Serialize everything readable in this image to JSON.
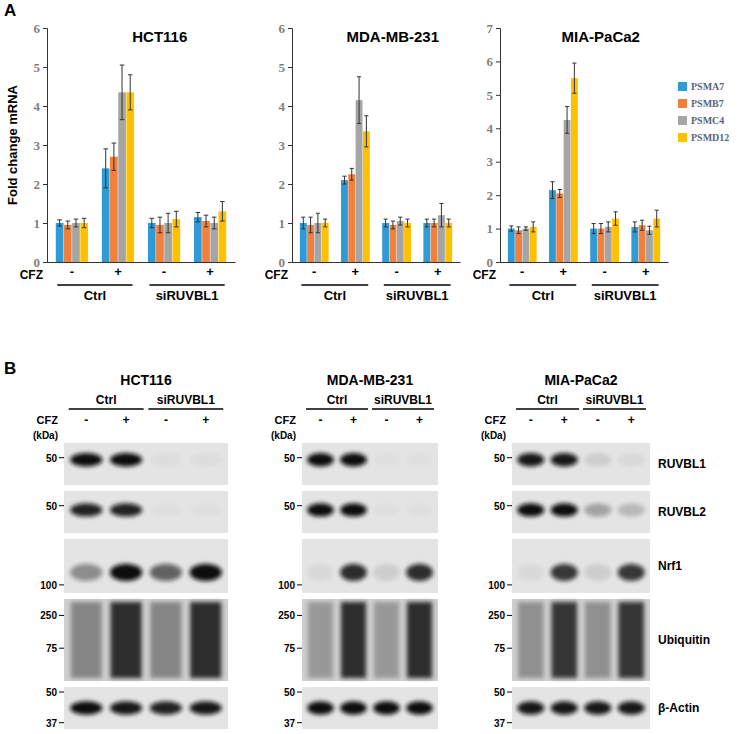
{
  "panel_labels": [
    "A",
    "B"
  ],
  "chart_data": [
    {
      "type": "bar",
      "title": "HCT116",
      "y_label": "Fold change mRNA",
      "x_label": "CFZ",
      "categories": [
        "-",
        "+",
        "-",
        "+"
      ],
      "group_labels": [
        "Ctrl",
        "siRUVBL1"
      ],
      "ylim": [
        0,
        6
      ],
      "yticks": [
        0,
        1,
        2,
        3,
        4,
        5,
        6
      ],
      "grid": false,
      "series": [
        {
          "name": "PSMA7",
          "color": "#2E9BD6",
          "values": [
            1.0,
            2.4,
            1.0,
            1.15
          ],
          "errors": [
            0.08,
            0.5,
            0.12,
            0.12
          ]
        },
        {
          "name": "PSMB7",
          "color": "#F0803C",
          "values": [
            0.95,
            2.7,
            0.95,
            1.05
          ],
          "errors": [
            0.1,
            0.35,
            0.2,
            0.15
          ]
        },
        {
          "name": "PSMC4",
          "color": "#A5A5A5",
          "values": [
            1.0,
            4.35,
            1.0,
            1.0
          ],
          "errors": [
            0.1,
            0.7,
            0.25,
            0.15
          ]
        },
        {
          "name": "PSMD12",
          "color": "#FFC000",
          "values": [
            1.0,
            4.35,
            1.1,
            1.3
          ],
          "errors": [
            0.12,
            0.45,
            0.2,
            0.25
          ]
        }
      ]
    },
    {
      "type": "bar",
      "title": "MDA-MB-231",
      "x_label": "CFZ",
      "categories": [
        "-",
        "+",
        "-",
        "+"
      ],
      "group_labels": [
        "Ctrl",
        "siRUVBL1"
      ],
      "ylim": [
        0,
        6
      ],
      "yticks": [
        0,
        1,
        2,
        3,
        4,
        5,
        6
      ],
      "grid": false,
      "series": [
        {
          "name": "PSMA7",
          "color": "#2E9BD6",
          "values": [
            1.0,
            2.1,
            1.0,
            1.0
          ],
          "errors": [
            0.15,
            0.1,
            0.1,
            0.1
          ]
        },
        {
          "name": "PSMB7",
          "color": "#F0803C",
          "values": [
            0.95,
            2.25,
            0.95,
            1.0
          ],
          "errors": [
            0.2,
            0.15,
            0.1,
            0.1
          ]
        },
        {
          "name": "PSMC4",
          "color": "#A5A5A5",
          "values": [
            1.0,
            4.15,
            1.05,
            1.2
          ],
          "errors": [
            0.25,
            0.6,
            0.1,
            0.3
          ]
        },
        {
          "name": "PSMD12",
          "color": "#FFC000",
          "values": [
            1.0,
            3.35,
            1.0,
            1.0
          ],
          "errors": [
            0.1,
            0.4,
            0.1,
            0.1
          ]
        }
      ]
    },
    {
      "type": "bar",
      "title": "MIA-PaCa2",
      "x_label": "CFZ",
      "categories": [
        "-",
        "+",
        "-",
        "+"
      ],
      "group_labels": [
        "Ctrl",
        "siRUVBL1"
      ],
      "ylim": [
        0,
        7
      ],
      "yticks": [
        0,
        1,
        2,
        3,
        4,
        5,
        6,
        7
      ],
      "grid": false,
      "legend": "right",
      "series": [
        {
          "name": "PSMA7",
          "color": "#2E9BD6",
          "values": [
            1.0,
            2.15,
            1.0,
            1.05
          ],
          "errors": [
            0.08,
            0.25,
            0.15,
            0.15
          ]
        },
        {
          "name": "PSMB7",
          "color": "#F0803C",
          "values": [
            0.95,
            2.05,
            1.0,
            1.1
          ],
          "errors": [
            0.1,
            0.12,
            0.15,
            0.15
          ]
        },
        {
          "name": "PSMC4",
          "color": "#A5A5A5",
          "values": [
            1.0,
            4.25,
            1.05,
            0.95
          ],
          "errors": [
            0.05,
            0.4,
            0.15,
            0.12
          ]
        },
        {
          "name": "PSMD12",
          "color": "#FFC000",
          "values": [
            1.05,
            5.5,
            1.3,
            1.3
          ],
          "errors": [
            0.15,
            0.45,
            0.2,
            0.25
          ]
        }
      ]
    }
  ],
  "panel_b": {
    "treatment_label": "CFZ",
    "lane_signs": [
      "-",
      "+",
      "-",
      "+"
    ],
    "lane_groups": [
      "Ctrl",
      "siRUVBL1"
    ],
    "kda_label": "(kDa)",
    "proteins": [
      "RUVBL1",
      "RUVBL2",
      "Nrf1",
      "Ubiquitin",
      "β-Actin"
    ],
    "blots": [
      {
        "title": "HCT116",
        "markers": [
          [
            50
          ],
          [
            50
          ],
          [
            100
          ],
          [
            250,
            75
          ],
          [
            50,
            37
          ]
        ],
        "intensity": [
          [
            1,
            1,
            0.03,
            0.03
          ],
          [
            0.9,
            0.9,
            0.02,
            0.02
          ],
          [
            0.4,
            1,
            0.6,
            1
          ],
          [
            0.4,
            0.9,
            0.4,
            0.9
          ],
          [
            1,
            0.95,
            0.9,
            0.95
          ]
        ]
      },
      {
        "title": "MDA-MB-231",
        "markers": [
          [
            50
          ],
          [
            50
          ],
          [
            100
          ],
          [
            250,
            75
          ],
          [
            50,
            37
          ]
        ],
        "intensity": [
          [
            1,
            1,
            0.02,
            0.02
          ],
          [
            1,
            1,
            0.02,
            0.02
          ],
          [
            0.05,
            0.85,
            0.1,
            0.85
          ],
          [
            0.3,
            0.9,
            0.3,
            0.9
          ],
          [
            1,
            1,
            1,
            1
          ]
        ]
      },
      {
        "title": "MIA-PaCa2",
        "markers": [
          [
            50
          ],
          [
            50
          ],
          [
            100
          ],
          [
            250,
            75
          ],
          [
            50,
            37
          ]
        ],
        "intensity": [
          [
            0.95,
            0.95,
            0.1,
            0.05
          ],
          [
            1,
            1,
            0.3,
            0.2
          ],
          [
            0.05,
            0.8,
            0.1,
            0.8
          ],
          [
            0.35,
            0.85,
            0.35,
            0.85
          ],
          [
            0.95,
            0.95,
            0.95,
            0.95
          ]
        ]
      }
    ]
  }
}
